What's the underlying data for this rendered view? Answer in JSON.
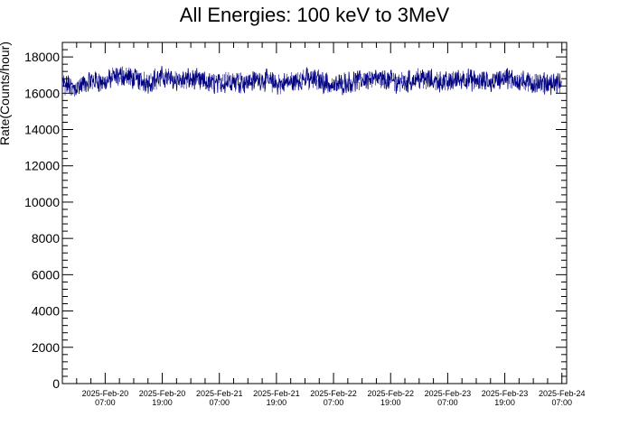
{
  "chart_data": {
    "type": "line",
    "title": "All Energies:  100 keV to 3MeV",
    "xlabel": "",
    "ylabel": "Rate(Counts/hour)",
    "ylim": [
      0,
      18800
    ],
    "yticks": [
      0,
      2000,
      4000,
      6000,
      8000,
      10000,
      12000,
      14000,
      16000,
      18000
    ],
    "xlim": [
      "2025-02-19 22:00",
      "2025-02-24 08:00"
    ],
    "xticks": [
      {
        "date": "2025-02-20 07:00",
        "line1": "2025-Feb-20",
        "line2": "07:00"
      },
      {
        "date": "2025-02-20 19:00",
        "line1": "2025-Feb-20",
        "line2": "19:00"
      },
      {
        "date": "2025-02-21 07:00",
        "line1": "2025-Feb-21",
        "line2": "07:00"
      },
      {
        "date": "2025-02-21 19:00",
        "line1": "2025-Feb-21",
        "line2": "19:00"
      },
      {
        "date": "2025-02-22 07:00",
        "line1": "2025-Feb-22",
        "line2": "07:00"
      },
      {
        "date": "2025-02-22 19:00",
        "line1": "2025-Feb-22",
        "line2": "19:00"
      },
      {
        "date": "2025-02-23 07:00",
        "line1": "2025-Feb-23",
        "line2": "07:00"
      },
      {
        "date": "2025-02-23 19:00",
        "line1": "2025-Feb-23",
        "line2": "19:00"
      },
      {
        "date": "2025-02-24 07:00",
        "line1": "2025-Feb-24",
        "line2": "07:00"
      }
    ],
    "grid": false,
    "legend": "none",
    "color": "#000080",
    "series": [
      {
        "x": [
          "2025-02-19 22:00",
          "2025-02-20 01:00",
          "2025-02-20 04:00",
          "2025-02-20 07:00",
          "2025-02-20 10:00",
          "2025-02-20 13:00",
          "2025-02-20 16:00",
          "2025-02-20 19:00",
          "2025-02-20 22:00",
          "2025-02-21 01:00",
          "2025-02-21 04:00",
          "2025-02-21 07:00",
          "2025-02-21 10:00",
          "2025-02-21 13:00",
          "2025-02-21 16:00",
          "2025-02-21 19:00",
          "2025-02-21 22:00",
          "2025-02-22 01:00",
          "2025-02-22 04:00",
          "2025-02-22 07:00",
          "2025-02-22 10:00",
          "2025-02-22 13:00",
          "2025-02-22 16:00",
          "2025-02-22 19:00",
          "2025-02-22 22:00",
          "2025-02-23 01:00",
          "2025-02-23 04:00",
          "2025-02-23 07:00",
          "2025-02-23 10:00",
          "2025-02-23 13:00",
          "2025-02-23 16:00",
          "2025-02-23 19:00",
          "2025-02-23 22:00",
          "2025-02-24 01:00",
          "2025-02-24 04:00",
          "2025-02-24 07:00"
        ],
        "y": [
          16500,
          16300,
          16700,
          16600,
          17000,
          16800,
          16600,
          16900,
          16700,
          16800,
          16600,
          16500,
          16700,
          16600,
          16800,
          16500,
          16600,
          16800,
          16700,
          16400,
          16600,
          16700,
          16800,
          16700,
          16600,
          16800,
          16700,
          16600,
          16800,
          16700,
          16600,
          16900,
          16700,
          16500,
          16600,
          16500
        ]
      }
    ]
  }
}
